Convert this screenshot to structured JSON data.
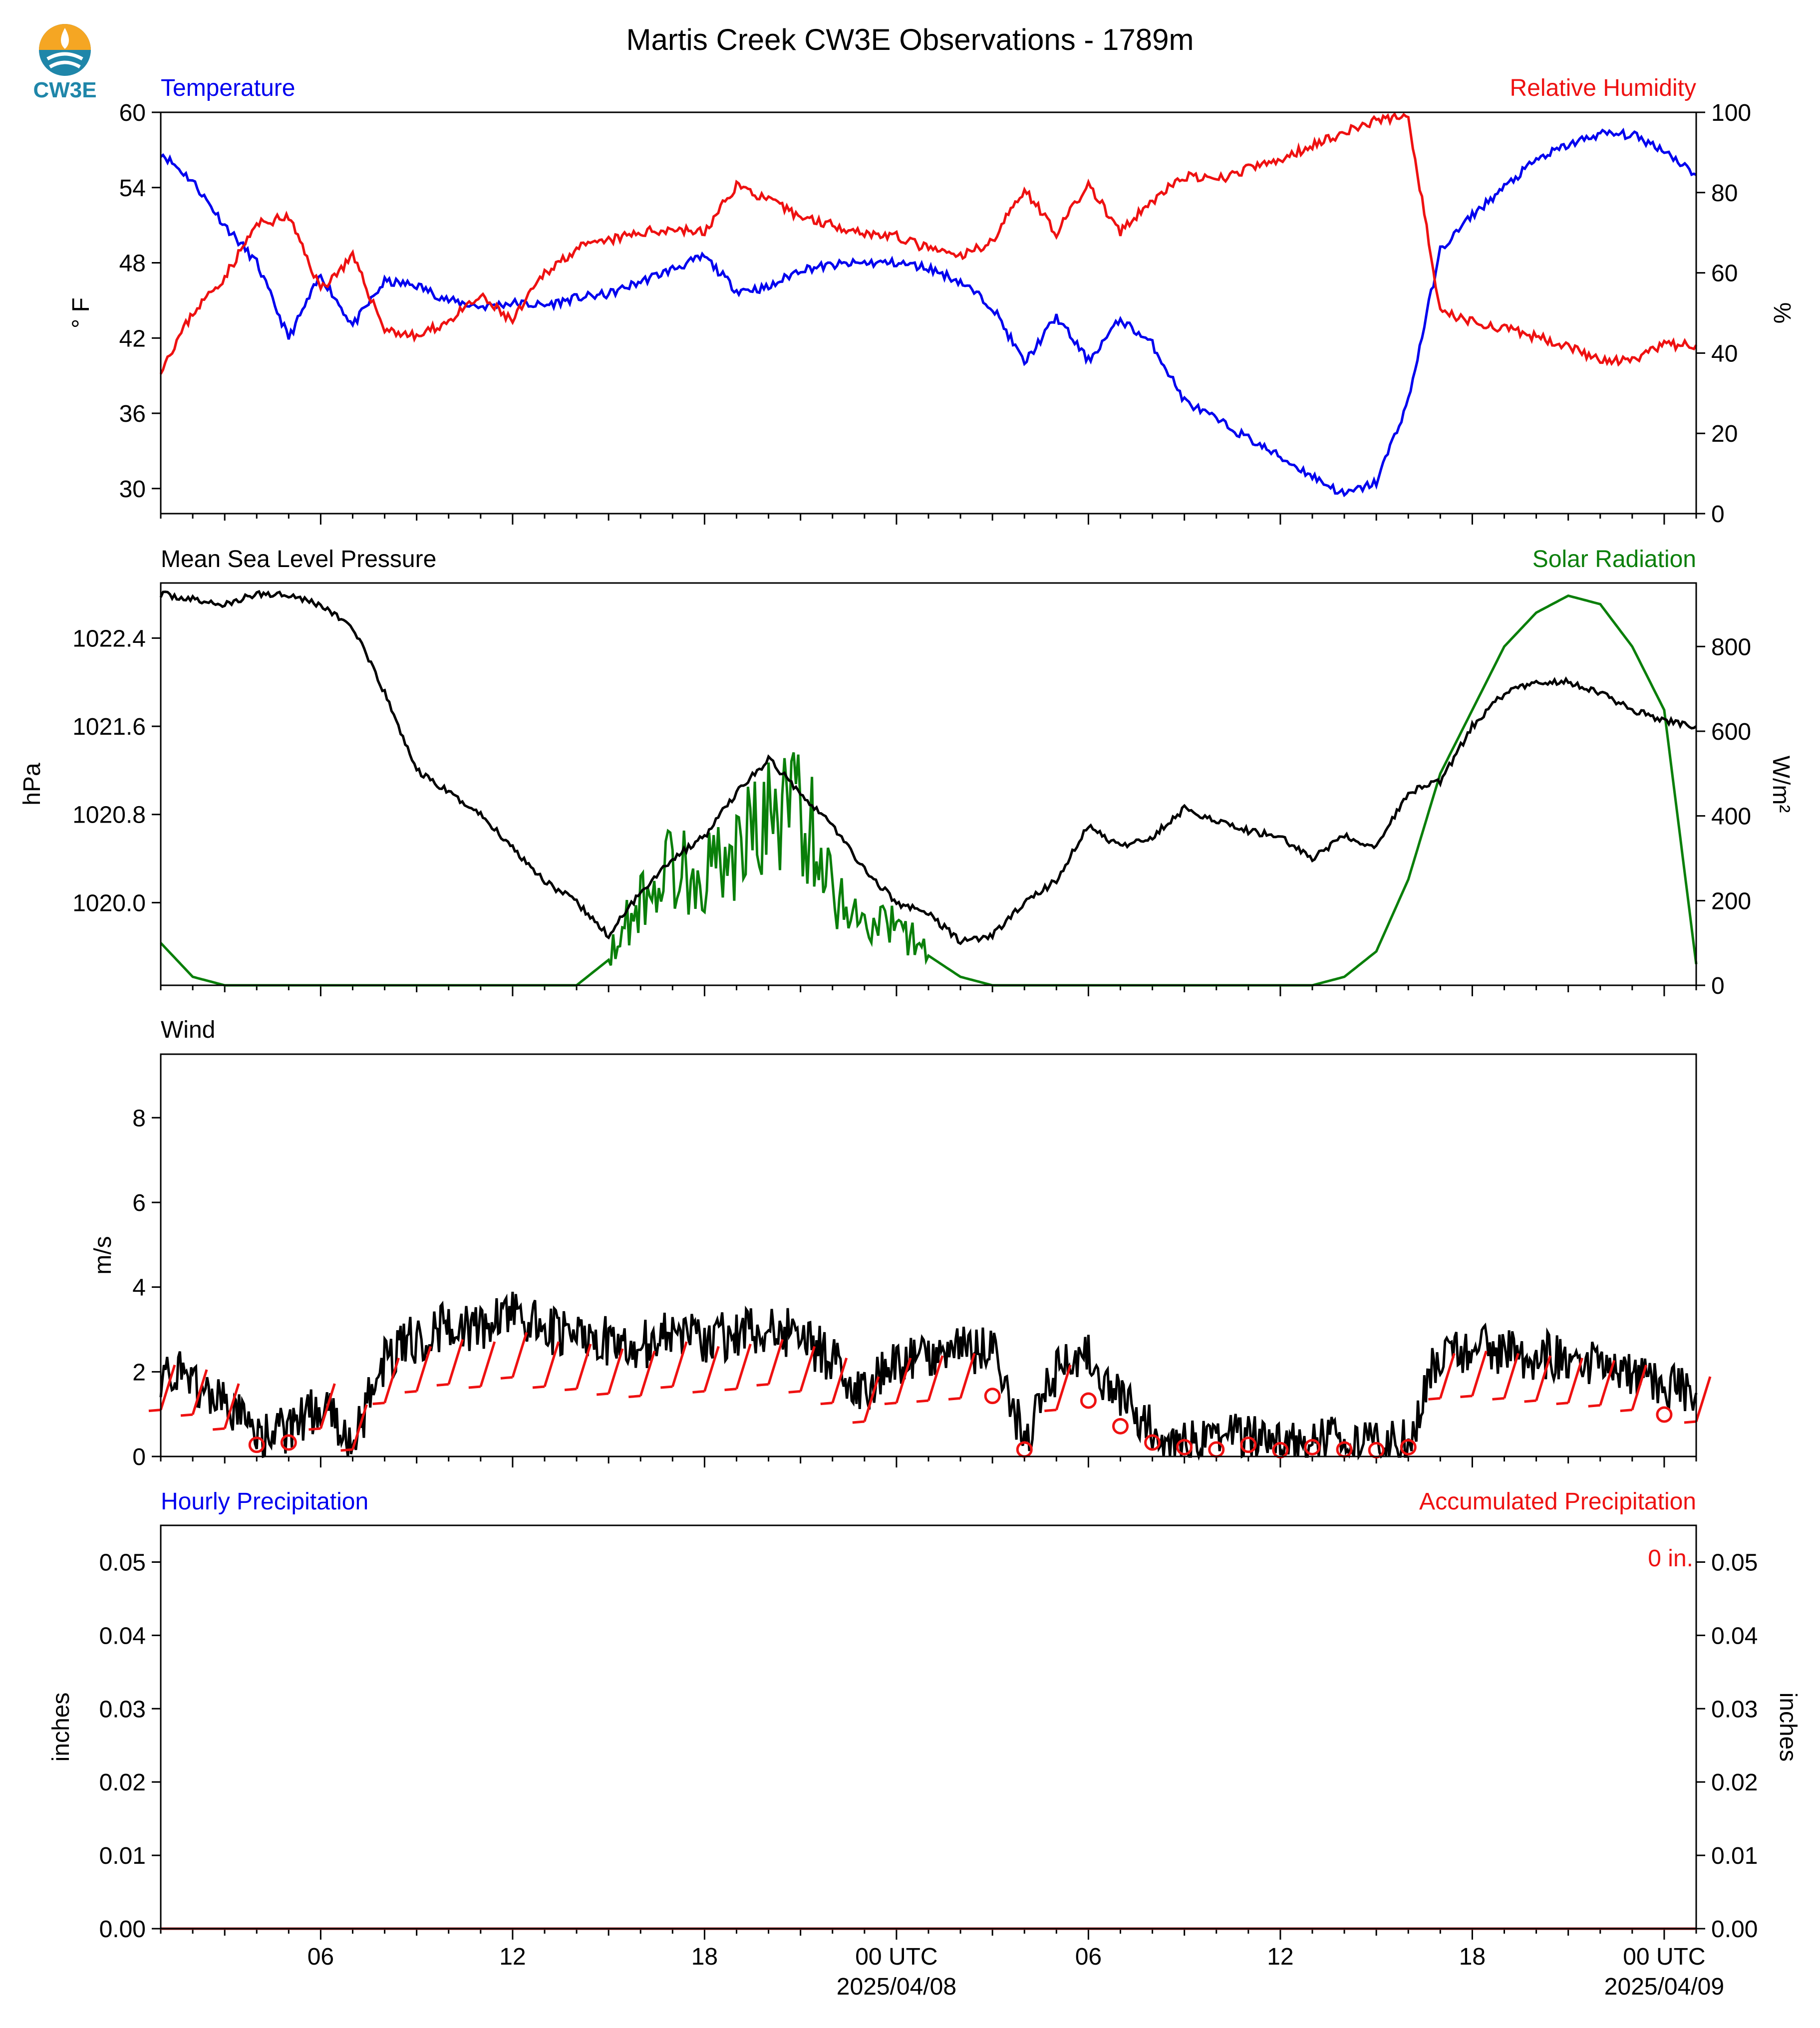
{
  "figure": {
    "title": "Martis Creek CW3E Observations - 1789m",
    "logo_text": "CW3E",
    "colors": {
      "blue": "#0000ee",
      "red": "#ee1111",
      "green": "#0a7f0a",
      "black": "#000000",
      "logo_teal": "#1f86a9",
      "logo_orange": "#f5a623"
    }
  },
  "chart_data": [
    {
      "type": "line",
      "panel": "temperature_rh",
      "title_left": "Temperature",
      "title_right": "Relative Humidity",
      "ylabel_left": "° F",
      "ylabel_right": "%",
      "ylim_left": [
        28,
        60
      ],
      "ylim_right": [
        0,
        100
      ],
      "yticks_left": [
        30,
        36,
        42,
        48,
        54,
        60
      ],
      "yticks_right": [
        0,
        20,
        40,
        60,
        80,
        100
      ],
      "x_hours": [
        0,
        1,
        2,
        3,
        4,
        5,
        6,
        7,
        8,
        9,
        10,
        11,
        12,
        13,
        14,
        15,
        16,
        17,
        18,
        19,
        20,
        21,
        22,
        23,
        24,
        25,
        26,
        27,
        28,
        29,
        30,
        31,
        32,
        33,
        34,
        35,
        36,
        37,
        38,
        39,
        40,
        41,
        42,
        43,
        44,
        45,
        46,
        47,
        48
      ],
      "series": [
        {
          "name": "Temperature",
          "axis": "left",
          "color": "#0000ee",
          "values": [
            56.8,
            54.5,
            51,
            48,
            42,
            47,
            43,
            46.5,
            46.2,
            45,
            44.5,
            44.8,
            44.6,
            45.2,
            45.5,
            46.5,
            47.5,
            48.5,
            45.8,
            46,
            47.5,
            47.8,
            48,
            48,
            47.6,
            46.5,
            44.5,
            40,
            43.7,
            40.2,
            43.5,
            41.5,
            37,
            35.5,
            34,
            32.5,
            31,
            29.5,
            30.5,
            37,
            49,
            51.8,
            54,
            56.2,
            57.4,
            58.3,
            58.2,
            57,
            55
          ]
        },
        {
          "name": "Relative Humidity",
          "axis": "right",
          "color": "#ee1111",
          "values": [
            36,
            50,
            59,
            72,
            74,
            56,
            64,
            46,
            44,
            48,
            54,
            48,
            60,
            66,
            68,
            70,
            71,
            70,
            82,
            78,
            74,
            72,
            70,
            69,
            66,
            64,
            68,
            81,
            70,
            82,
            70,
            78,
            84,
            83,
            86,
            88,
            92,
            95,
            98,
            99,
            50,
            48,
            46,
            44,
            42,
            38,
            38,
            42,
            42
          ]
        }
      ]
    },
    {
      "type": "line",
      "panel": "pressure_solar",
      "title_left": "Mean Sea Level Pressure",
      "title_right": "Solar Radiation",
      "ylabel_left": "hPa",
      "ylabel_right": "W/m²",
      "ylim_left": [
        1019.25,
        1022.9
      ],
      "ylim_right": [
        0,
        950
      ],
      "yticks_left": [
        "1020.0",
        "1020.8",
        "1021.6",
        "1022.4"
      ],
      "yticks_right": [
        0,
        200,
        400,
        600,
        800
      ],
      "x_hours": [
        0,
        1,
        2,
        3,
        4,
        5,
        6,
        7,
        8,
        9,
        10,
        11,
        12,
        13,
        14,
        15,
        16,
        17,
        18,
        19,
        20,
        21,
        22,
        23,
        24,
        25,
        26,
        27,
        28,
        29,
        30,
        31,
        32,
        33,
        34,
        35,
        36,
        37,
        38,
        39,
        40,
        41,
        42,
        43,
        44,
        45,
        46,
        47,
        48
      ],
      "series": [
        {
          "name": "Mean Sea Level Pressure",
          "axis": "left",
          "color": "#000000",
          "values": [
            1022.8,
            1022.75,
            1022.7,
            1022.8,
            1022.8,
            1022.7,
            1022.5,
            1021.9,
            1021.2,
            1021.0,
            1020.8,
            1020.5,
            1020.2,
            1020.0,
            1019.7,
            1020.1,
            1020.4,
            1020.6,
            1021.0,
            1021.3,
            1021.0,
            1020.7,
            1020.3,
            1020.0,
            1019.9,
            1019.65,
            1019.7,
            1020.0,
            1020.2,
            1020.7,
            1020.5,
            1020.6,
            1020.85,
            1020.75,
            1020.65,
            1020.6,
            1020.4,
            1020.6,
            1020.5,
            1021.0,
            1021.1,
            1021.6,
            1021.9,
            1022.0,
            1022.0,
            1021.9,
            1021.75,
            1021.65,
            1021.6
          ]
        },
        {
          "name": "Solar Radiation",
          "axis": "right",
          "color": "#0a7f0a",
          "values": [
            100,
            20,
            0,
            0,
            0,
            0,
            0,
            0,
            0,
            0,
            0,
            0,
            0,
            0,
            60,
            180,
            250,
            230,
            280,
            350,
            380,
            200,
            130,
            120,
            70,
            20,
            0,
            0,
            0,
            0,
            0,
            0,
            0,
            0,
            0,
            0,
            0,
            20,
            80,
            250,
            500,
            650,
            800,
            880,
            920,
            900,
            800,
            650,
            50
          ]
        }
      ]
    },
    {
      "type": "line",
      "panel": "wind",
      "title_left": "Wind",
      "ylabel_left": "m/s",
      "ylim_left": [
        0,
        9.5
      ],
      "yticks_left": [
        0,
        2,
        4,
        6,
        8
      ],
      "x_hours": [
        0,
        1,
        2,
        3,
        4,
        5,
        6,
        7,
        8,
        9,
        10,
        11,
        12,
        13,
        14,
        15,
        16,
        17,
        18,
        19,
        20,
        21,
        22,
        23,
        24,
        25,
        26,
        27,
        28,
        29,
        30,
        31,
        32,
        33,
        34,
        35,
        36,
        37,
        38,
        39,
        40,
        41,
        42,
        43,
        44,
        45,
        46,
        47,
        48
      ],
      "series": [
        {
          "name": "Wind Speed",
          "axis": "left",
          "color": "#000000",
          "values": [
            2,
            1.8,
            1.2,
            0.5,
            0.6,
            1.2,
            0.3,
            2.3,
            2.8,
            3.1,
            3.0,
            3.4,
            3.0,
            2.9,
            2.7,
            2.6,
            3.0,
            2.8,
            2.9,
            3.1,
            2.8,
            2.3,
            1.5,
            2.3,
            2.4,
            2.5,
            2.6,
            0.3,
            2.0,
            2.4,
            1.3,
            0.6,
            0.4,
            0.3,
            0.5,
            0.2,
            0.4,
            0.3,
            0.2,
            0.4,
            2.5,
            2.6,
            2.5,
            2.4,
            2.3,
            2.2,
            2.0,
            1.8,
            1.5
          ]
        }
      ],
      "barb_markers": [
        {
          "x": 0,
          "kind": "barb"
        },
        {
          "x": 1,
          "kind": "barb"
        },
        {
          "x": 2,
          "kind": "barb"
        },
        {
          "x": 3,
          "kind": "calm"
        },
        {
          "x": 4,
          "kind": "calm"
        },
        {
          "x": 5,
          "kind": "barb"
        },
        {
          "x": 6,
          "kind": "barb"
        },
        {
          "x": 7,
          "kind": "barb"
        },
        {
          "x": 8,
          "kind": "barb"
        },
        {
          "x": 9,
          "kind": "barb"
        },
        {
          "x": 10,
          "kind": "barb"
        },
        {
          "x": 11,
          "kind": "barb"
        },
        {
          "x": 12,
          "kind": "barb"
        },
        {
          "x": 13,
          "kind": "barb"
        },
        {
          "x": 14,
          "kind": "barb"
        },
        {
          "x": 15,
          "kind": "barb"
        },
        {
          "x": 16,
          "kind": "barb"
        },
        {
          "x": 17,
          "kind": "barb"
        },
        {
          "x": 18,
          "kind": "barb"
        },
        {
          "x": 19,
          "kind": "barb"
        },
        {
          "x": 20,
          "kind": "barb"
        },
        {
          "x": 21,
          "kind": "barb"
        },
        {
          "x": 22,
          "kind": "barb"
        },
        {
          "x": 23,
          "kind": "barb"
        },
        {
          "x": 24,
          "kind": "barb"
        },
        {
          "x": 25,
          "kind": "barb"
        },
        {
          "x": 26,
          "kind": "calm"
        },
        {
          "x": 27,
          "kind": "calm"
        },
        {
          "x": 28,
          "kind": "barb"
        },
        {
          "x": 29,
          "kind": "calm"
        },
        {
          "x": 30,
          "kind": "calm"
        },
        {
          "x": 31,
          "kind": "calm"
        },
        {
          "x": 32,
          "kind": "calm"
        },
        {
          "x": 33,
          "kind": "calm"
        },
        {
          "x": 34,
          "kind": "calm"
        },
        {
          "x": 35,
          "kind": "calm"
        },
        {
          "x": 36,
          "kind": "calm"
        },
        {
          "x": 37,
          "kind": "calm"
        },
        {
          "x": 38,
          "kind": "calm"
        },
        {
          "x": 39,
          "kind": "calm"
        },
        {
          "x": 40,
          "kind": "barb"
        },
        {
          "x": 41,
          "kind": "barb"
        },
        {
          "x": 42,
          "kind": "barb"
        },
        {
          "x": 43,
          "kind": "barb"
        },
        {
          "x": 44,
          "kind": "barb"
        },
        {
          "x": 45,
          "kind": "barb"
        },
        {
          "x": 46,
          "kind": "barb"
        },
        {
          "x": 47,
          "kind": "calm"
        },
        {
          "x": 48,
          "kind": "barb"
        }
      ]
    },
    {
      "type": "line",
      "panel": "precipitation",
      "title_left": "Hourly Precipitation",
      "title_right": "Accumulated Precipitation",
      "ylabel_left": "inches",
      "ylabel_right": "inches",
      "ylim_left": [
        0,
        0.055
      ],
      "ylim_right": [
        0,
        0.055
      ],
      "yticks_left": [
        "0.00",
        "0.01",
        "0.02",
        "0.03",
        "0.04",
        "0.05"
      ],
      "yticks_right": [
        "0.00",
        "0.01",
        "0.02",
        "0.03",
        "0.04",
        "0.05"
      ],
      "annotation": "0 in.",
      "series": [
        {
          "name": "Hourly Precipitation",
          "axis": "left",
          "color": "#0000ee",
          "x": [
            0,
            48
          ],
          "values": [
            0,
            0
          ]
        },
        {
          "name": "Accumulated Precipitation",
          "axis": "right",
          "color": "#ee1111",
          "x": [
            0,
            48
          ],
          "values": [
            0,
            0
          ]
        }
      ]
    }
  ],
  "x_axis": {
    "xlim_hours": [
      0,
      48
    ],
    "major_ticks": [
      {
        "h": 5,
        "label": "06",
        "sub": ""
      },
      {
        "h": 11,
        "label": "12",
        "sub": ""
      },
      {
        "h": 17,
        "label": "18",
        "sub": ""
      },
      {
        "h": 23,
        "label": "00 UTC",
        "sub": "2025/04/08"
      },
      {
        "h": 29,
        "label": "06",
        "sub": ""
      },
      {
        "h": 35,
        "label": "12",
        "sub": ""
      },
      {
        "h": 41,
        "label": "18",
        "sub": ""
      },
      {
        "h": 47,
        "label": "00 UTC",
        "sub": "2025/04/09"
      }
    ]
  }
}
